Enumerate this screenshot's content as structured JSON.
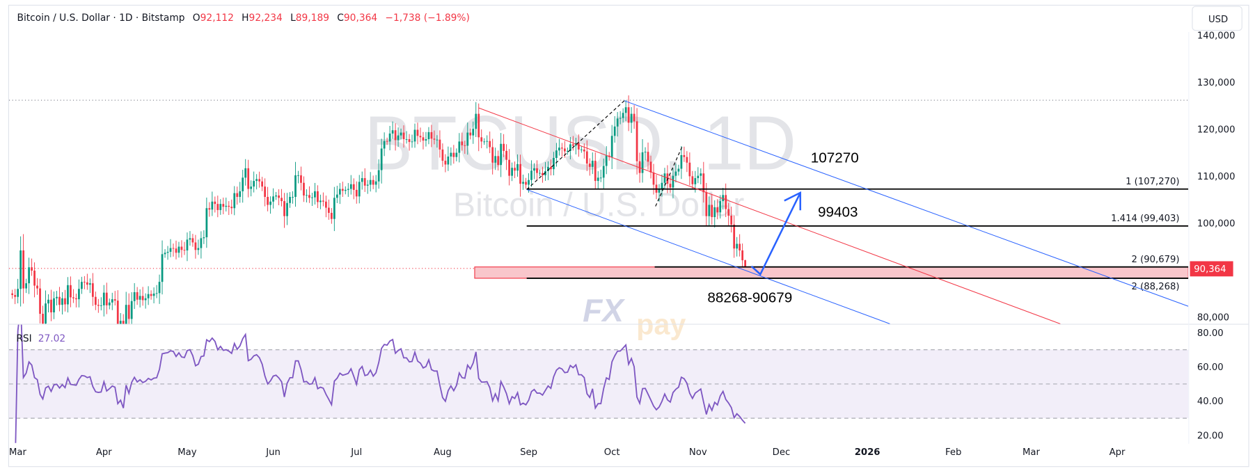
{
  "header": {
    "symbol": "Bitcoin / U.S. Dollar · 1D · Bitstamp",
    "o_label": "O",
    "o": "92,112",
    "h_label": "H",
    "h": "92,234",
    "l_label": "L",
    "l": "89,189",
    "c_label": "C",
    "c": "90,364",
    "change": "−1,738 (−1.89%)"
  },
  "currency_button": "USD",
  "watermark": {
    "title": "BTCUSD, 1D",
    "subtitle": "Bitcoin / U.S. Dollar"
  },
  "logo": {
    "fx": "FX",
    "pay": "pay"
  },
  "price_axis": {
    "ticks": [
      {
        "value": 140000,
        "label": "140,000"
      },
      {
        "value": 130000,
        "label": "130,000"
      },
      {
        "value": 120000,
        "label": "120,000"
      },
      {
        "value": 110000,
        "label": "110,000"
      },
      {
        "value": 100000,
        "label": "100,000"
      },
      {
        "value": 80000,
        "label": "80,000"
      }
    ],
    "last_price": "90,364",
    "last_price_value": 90364,
    "cycle_high_value": 126200
  },
  "rsi": {
    "label": "RSI",
    "value": "27.02",
    "ticks": [
      {
        "value": 80,
        "label": "80.00"
      },
      {
        "value": 60,
        "label": "60.00"
      },
      {
        "value": 40,
        "label": "40.00"
      },
      {
        "value": 20,
        "label": "20.00"
      }
    ],
    "upper_band": 70,
    "middle": 50,
    "lower_band": 30
  },
  "time_axis": [
    "Mar",
    "Apr",
    "May",
    "Jun",
    "Jul",
    "Aug",
    "Sep",
    "Oct",
    "Nov",
    "Dec",
    "2026",
    "Feb",
    "Mar",
    "Apr"
  ],
  "annotations": {
    "fib_levels": [
      {
        "label": "1 (107,270)",
        "price": 107270
      },
      {
        "label": "1.414 (99,403)",
        "price": 99403
      },
      {
        "label": "2 (90,679)",
        "price": 90679
      },
      {
        "label": "2 (88,268)",
        "price": 88268
      }
    ],
    "target_1": "107270",
    "target_2": "99403",
    "support_zone": "88268-90679",
    "support_zone_range": [
      88268,
      90679
    ]
  },
  "colors": {
    "up": "#089981",
    "down": "#f23645",
    "rsi_line": "#7e57c2",
    "channel_blue": "#2962ff",
    "channel_red": "#f23645",
    "zone_fill": "#f9c6cb",
    "arrow": "#2962ff"
  },
  "chart_data": {
    "type": "candlestick",
    "interval": "1D",
    "start_date": "2025-02-27",
    "closes": [
      84700,
      84300,
      86000,
      94200,
      86100,
      87200,
      90600,
      89900,
      86700,
      86100,
      80700,
      78600,
      82900,
      83700,
      81000,
      84000,
      84300,
      82600,
      84000,
      82700,
      86800,
      84200,
      84000,
      83800,
      86000,
      87500,
      87400,
      86900,
      87200,
      84300,
      82600,
      82400,
      82500,
      85200,
      82500,
      83100,
      83800,
      83500,
      78400,
      79200,
      76300,
      82600,
      79600,
      83400,
      85300,
      83700,
      84500,
      83600,
      84000,
      84900,
      84500,
      85000,
      85100,
      87500,
      93400,
      93700,
      93900,
      94700,
      94600,
      93700,
      95000,
      94300,
      94200,
      96500,
      96800,
      95900,
      94300,
      94700,
      96800,
      97000,
      103200,
      102900,
      104600,
      104100,
      102800,
      104100,
      103500,
      103700,
      103500,
      103200,
      106400,
      105600,
      106800,
      109700,
      111700,
      107300,
      107800,
      109000,
      109400,
      108900,
      107800,
      105600,
      103900,
      104600,
      105700,
      105900,
      105400,
      104700,
      101500,
      104300,
      105600,
      105600,
      110200,
      110200,
      108600,
      105900,
      106000,
      105400,
      105500,
      106800,
      104500,
      104800,
      104600,
      103300,
      102200,
      100900,
      105400,
      106100,
      107300,
      106900,
      107100,
      107300,
      108300,
      107100,
      105700,
      108800,
      109600,
      108000,
      108200,
      109200,
      108200,
      108900,
      111300,
      115900,
      117500,
      117400,
      119100,
      119800,
      117700,
      118700,
      119300,
      117900,
      117900,
      117300,
      117400,
      119900,
      118600,
      118300,
      117600,
      117900,
      119400,
      118000,
      117800,
      117800,
      115700,
      113300,
      112500,
      114200,
      115000,
      114100,
      115000,
      117400,
      116600,
      116500,
      119300,
      118700,
      120100,
      123300,
      118300,
      117400,
      117400,
      117500,
      116200,
      112900,
      114300,
      112400,
      116900,
      115400,
      113500,
      110100,
      111800,
      111200,
      112600,
      108400,
      108800,
      108200,
      109200,
      111200,
      111700,
      110700,
      110700,
      110200,
      111100,
      112000,
      111500,
      113900,
      115500,
      116100,
      115900,
      115300,
      115400,
      116800,
      116500,
      117100,
      115700,
      115700,
      115300,
      112700,
      112000,
      113300,
      109000,
      109700,
      109700,
      112200,
      114400,
      114100,
      118600,
      120600,
      122300,
      122400,
      123500,
      124700,
      121400,
      123300,
      121700,
      113200,
      110700,
      115100,
      115200,
      113100,
      110800,
      108200,
      106500,
      107200,
      108600,
      110600,
      108400,
      107600,
      110100,
      111000,
      111600,
      114500,
      114100,
      112900,
      110000,
      108300,
      109600,
      110100,
      110600,
      106600,
      101500,
      103900,
      101300,
      103400,
      102300,
      104700,
      106000,
      103000,
      101600,
      99700,
      94600,
      95600,
      94200,
      92100,
      90364
    ],
    "last_candle": {
      "o": 92112,
      "h": 92234,
      "l": 89189,
      "c": 90364
    },
    "ylim": [
      80000,
      140000
    ],
    "rsi_ylim": [
      20,
      80
    ]
  }
}
